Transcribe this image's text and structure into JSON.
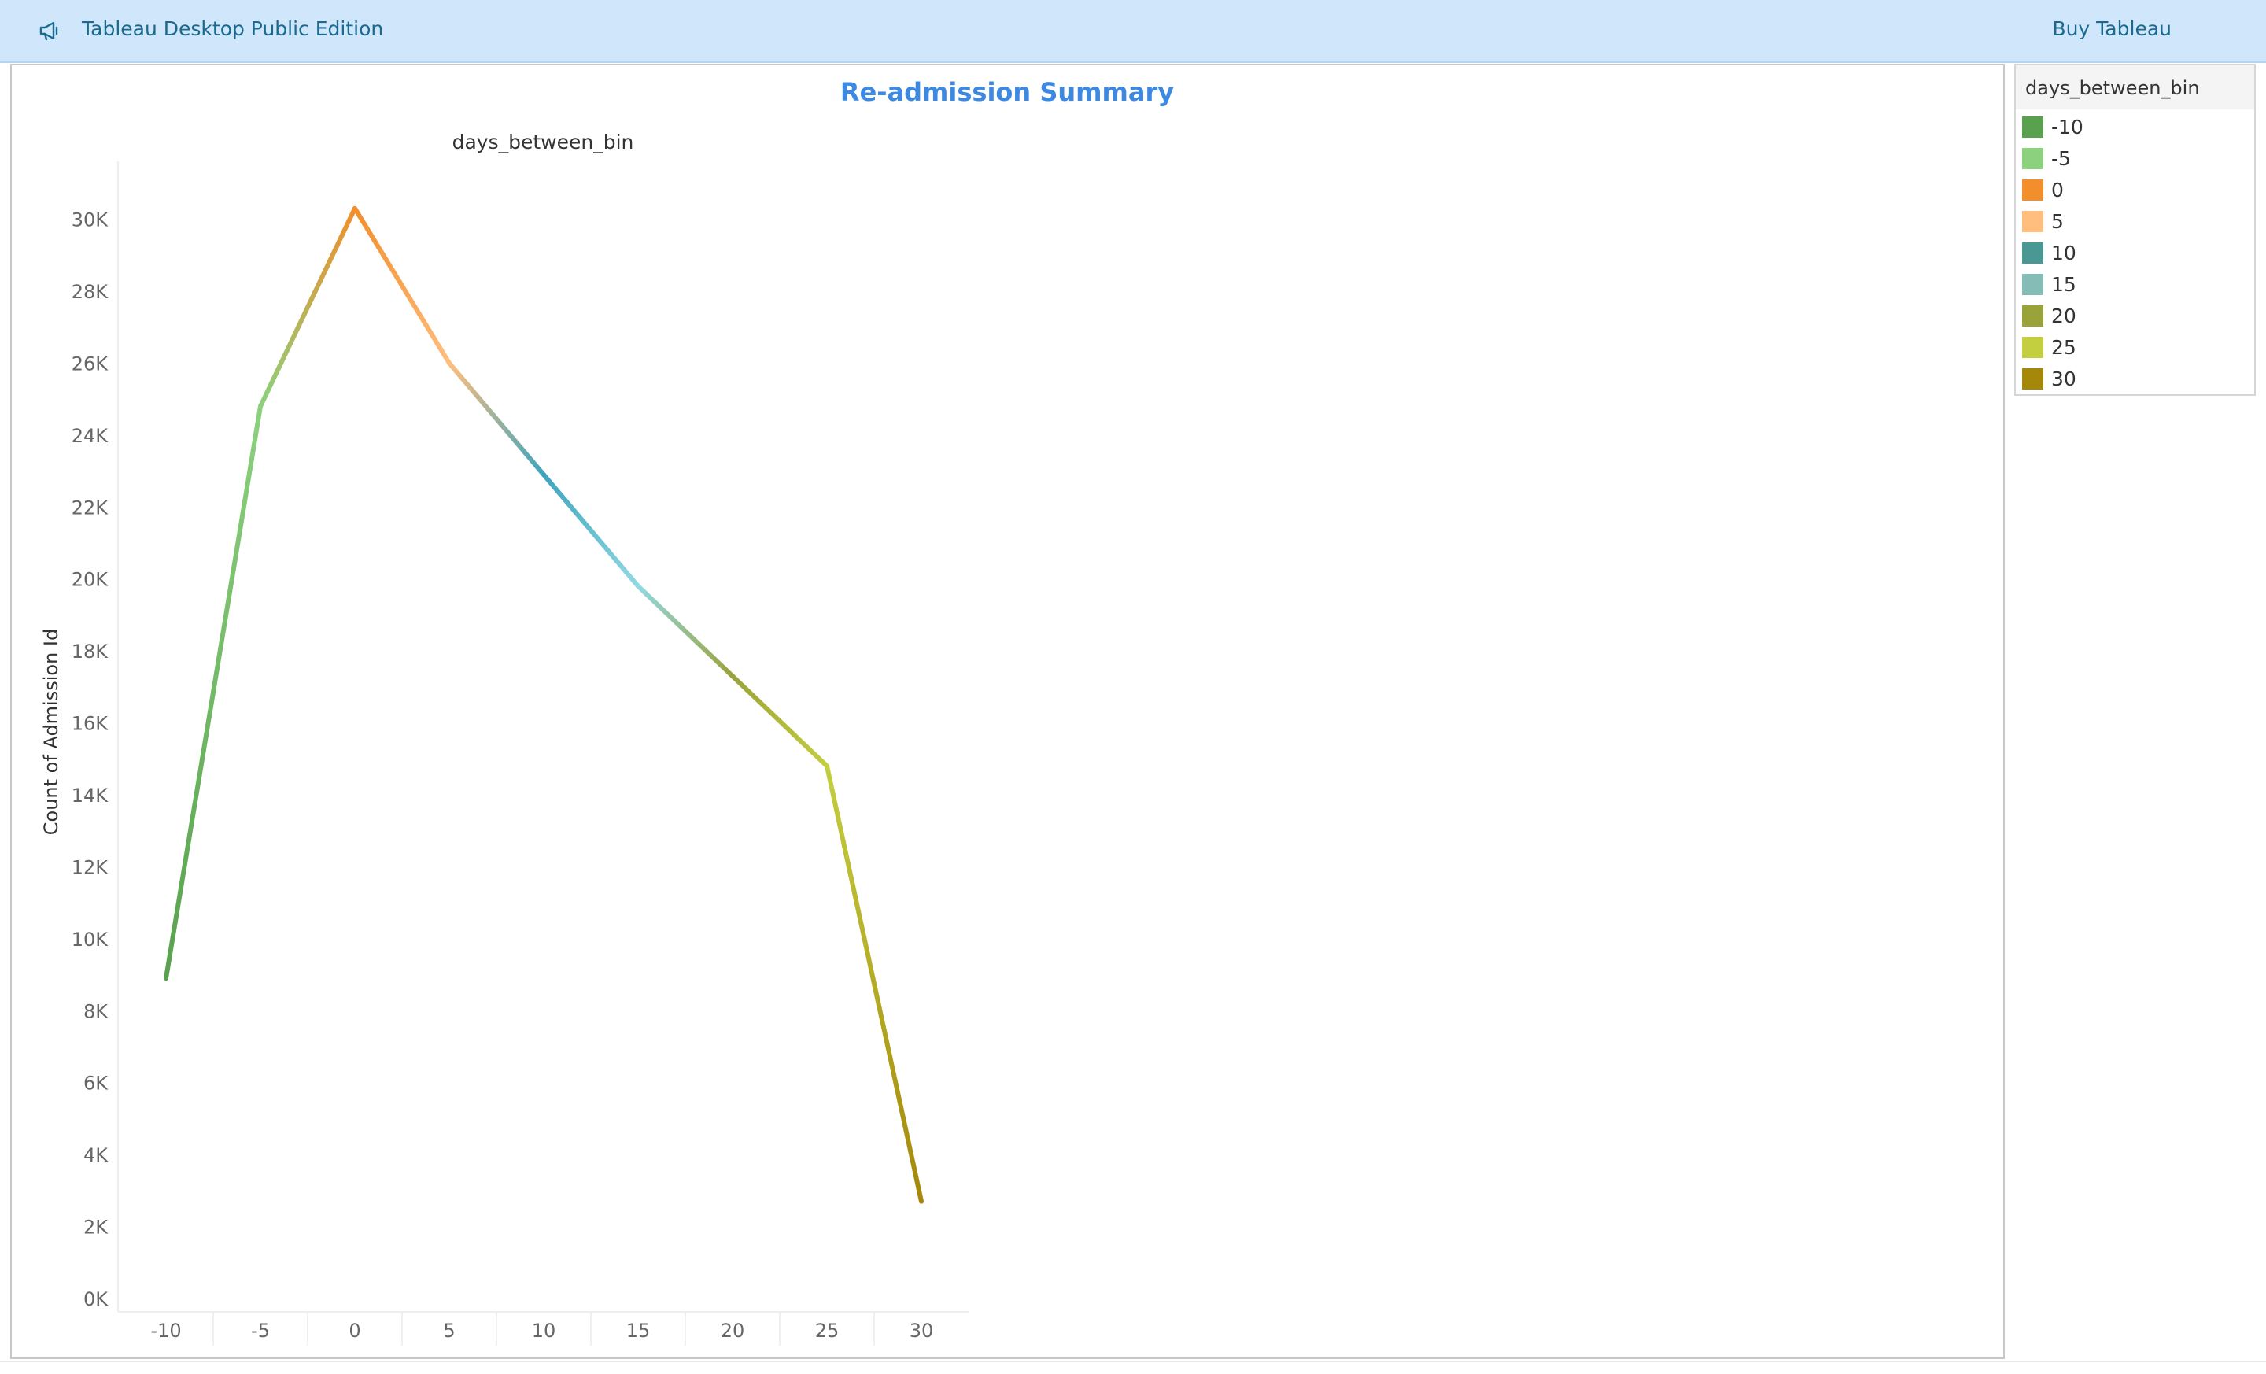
{
  "app": {
    "name": "Tableau Desktop Public Edition",
    "buy_label": "Buy Tableau"
  },
  "dashboard": {
    "title": "Re-admission Summary"
  },
  "legend": {
    "title": "days_between_bin",
    "items": [
      {
        "label": "-10",
        "color": "#59a14f"
      },
      {
        "label": "-5",
        "color": "#8cd17d"
      },
      {
        "label": "0",
        "color": "#f28e2b"
      },
      {
        "label": "5",
        "color": "#ffbe7d"
      },
      {
        "label": "10",
        "color": "#499894"
      },
      {
        "label": "15",
        "color": "#86bcb6"
      },
      {
        "label": "20",
        "color": "#9aa33a"
      },
      {
        "label": "25",
        "color": "#c3cf3f"
      },
      {
        "label": "30",
        "color": "#a58709"
      }
    ]
  },
  "chart_data": {
    "type": "line",
    "title": "days_between_bin",
    "xlabel": "",
    "ylabel": "Count of Admission Id",
    "x": [
      -10,
      -5,
      0,
      5,
      10,
      15,
      20,
      25,
      30
    ],
    "values": [
      8900,
      24800,
      30300,
      26000,
      22900,
      19800,
      17300,
      14800,
      2700
    ],
    "x_ticks": [
      "-10",
      "-5",
      "0",
      "5",
      "10",
      "15",
      "20",
      "25",
      "30"
    ],
    "y_ticks": [
      "0K",
      "2K",
      "4K",
      "6K",
      "8K",
      "10K",
      "12K",
      "14K",
      "16K",
      "18K",
      "20K",
      "22K",
      "24K",
      "26K",
      "28K",
      "30K"
    ],
    "ylim": [
      0,
      31500
    ],
    "xlim": [
      -10,
      30
    ],
    "grid": false,
    "legend": "right",
    "colors": [
      "#59a14f",
      "#8cd17d",
      "#f28e2b",
      "#ffbe7d",
      "#3da5bd",
      "#92d9e2",
      "#9aa33a",
      "#c3cf3f",
      "#a58709"
    ]
  }
}
